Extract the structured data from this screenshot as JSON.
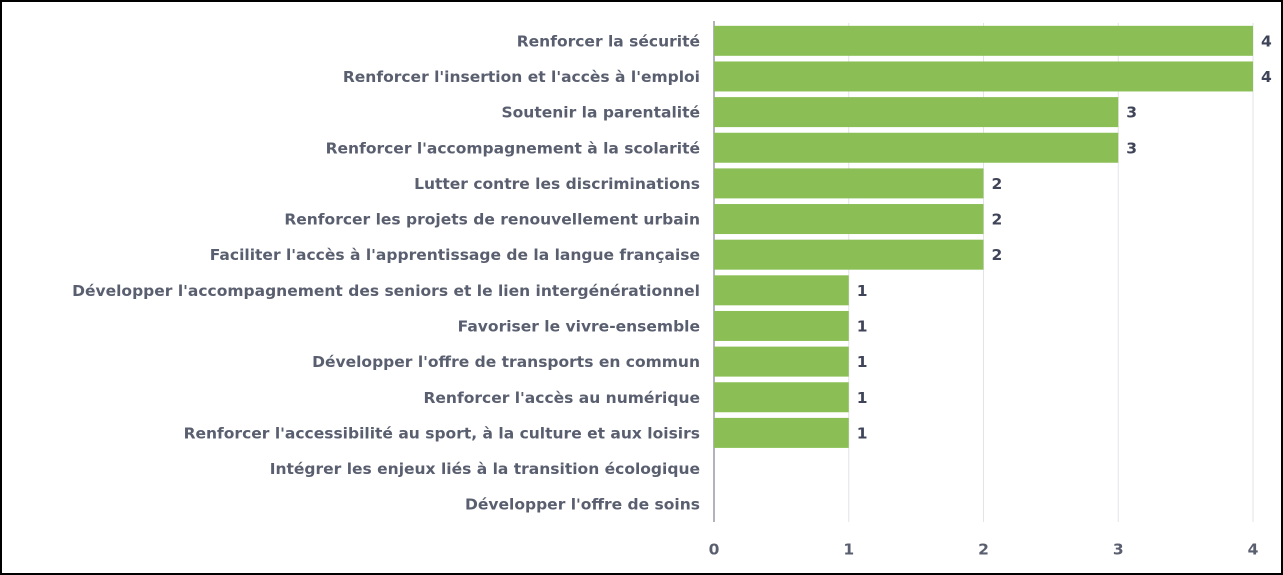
{
  "chart_data": {
    "type": "barh",
    "categories": [
      "Renforcer la sécurité",
      "Renforcer l'insertion et l'accès à l'emploi",
      "Soutenir la parentalité",
      "Renforcer l'accompagnement à la scolarité",
      "Lutter contre les discriminations",
      "Renforcer les projets de renouvellement urbain",
      "Faciliter l'accès à l'apprentissage de la langue française",
      "Développer l'accompagnement des seniors et le lien intergénérationnel",
      "Favoriser le vivre-ensemble",
      "Développer l'offre de transports en commun",
      "Renforcer l'accès au numérique",
      "Renforcer l'accessibilité au sport, à la culture et aux loisirs",
      "Intégrer les enjeux liés à la transition écologique",
      "Développer l'offre de soins"
    ],
    "values": [
      4,
      4,
      3,
      3,
      2,
      2,
      2,
      1,
      1,
      1,
      1,
      1,
      0,
      0
    ],
    "color": "#8bbf56",
    "xlim": [
      0,
      4
    ],
    "xticks": [
      0,
      1,
      2,
      3,
      4
    ],
    "grid": true
  }
}
